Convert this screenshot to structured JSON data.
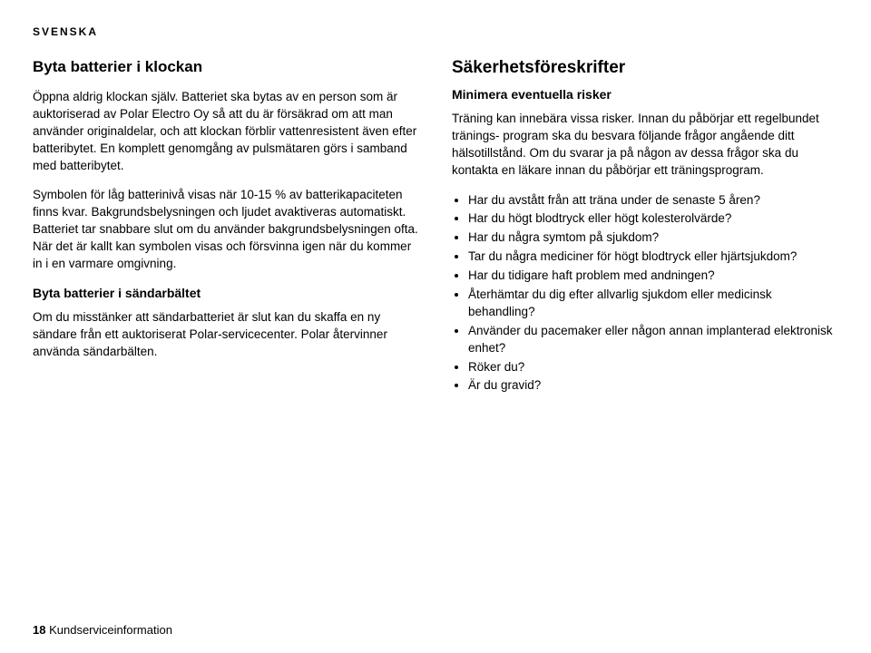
{
  "language_tag": "SVENSKA",
  "left": {
    "heading": "Byta batterier i klockan",
    "p1": "Öppna aldrig klockan själv. Batteriet ska bytas av en person som är auktoriserad av Polar Electro Oy så att du är försäkrad om att man använder originaldelar, och att klockan förblir vattenresistent även efter batteribytet. En komplett genomgång av pulsmätaren görs i samband med batteribytet.",
    "p2": "Symbolen för låg batterinivå visas när 10-15 % av batterikapaciteten finns kvar. Bakgrundsbelysningen och ljudet avaktiveras automatiskt. Batteriet tar snabbare slut om du använder bakgrundsbelysningen ofta. När det är kallt kan symbolen visas och försvinna igen när du kommer in i en varmare omgivning.",
    "sub": "Byta batterier i sändarbältet",
    "p3": "Om du misstänker att sändarbatteriet är slut kan du skaffa en ny sändare från ett auktoriserat Polar-servicecenter. Polar återvinner använda sändarbälten."
  },
  "right": {
    "heading": "Säkerhetsföreskrifter",
    "sub": "Minimera eventuella risker",
    "p1": "Träning kan innebära vissa risker. Innan du påbörjar ett regelbundet tränings- program ska du besvara följande frågor angående ditt hälsotillstånd. Om du svarar ja på någon av dessa frågor ska du kontakta en läkare innan du påbörjar ett träningsprogram.",
    "questions": [
      "Har du avstått från att träna under de senaste 5 åren?",
      "Har du högt blodtryck eller högt kolesterolvärde?",
      "Har du några symtom på sjukdom?",
      "Tar du några mediciner för högt blodtryck eller hjärtsjukdom?",
      "Har du tidigare haft problem med andningen?",
      "Återhämtar du dig efter allvarlig sjukdom eller medicinsk behandling?",
      "Använder du pacemaker eller någon annan implanterad elektronisk enhet?",
      "Röker du?",
      "Är du gravid?"
    ]
  },
  "footer": {
    "page": "18",
    "section": "Kundserviceinformation"
  }
}
